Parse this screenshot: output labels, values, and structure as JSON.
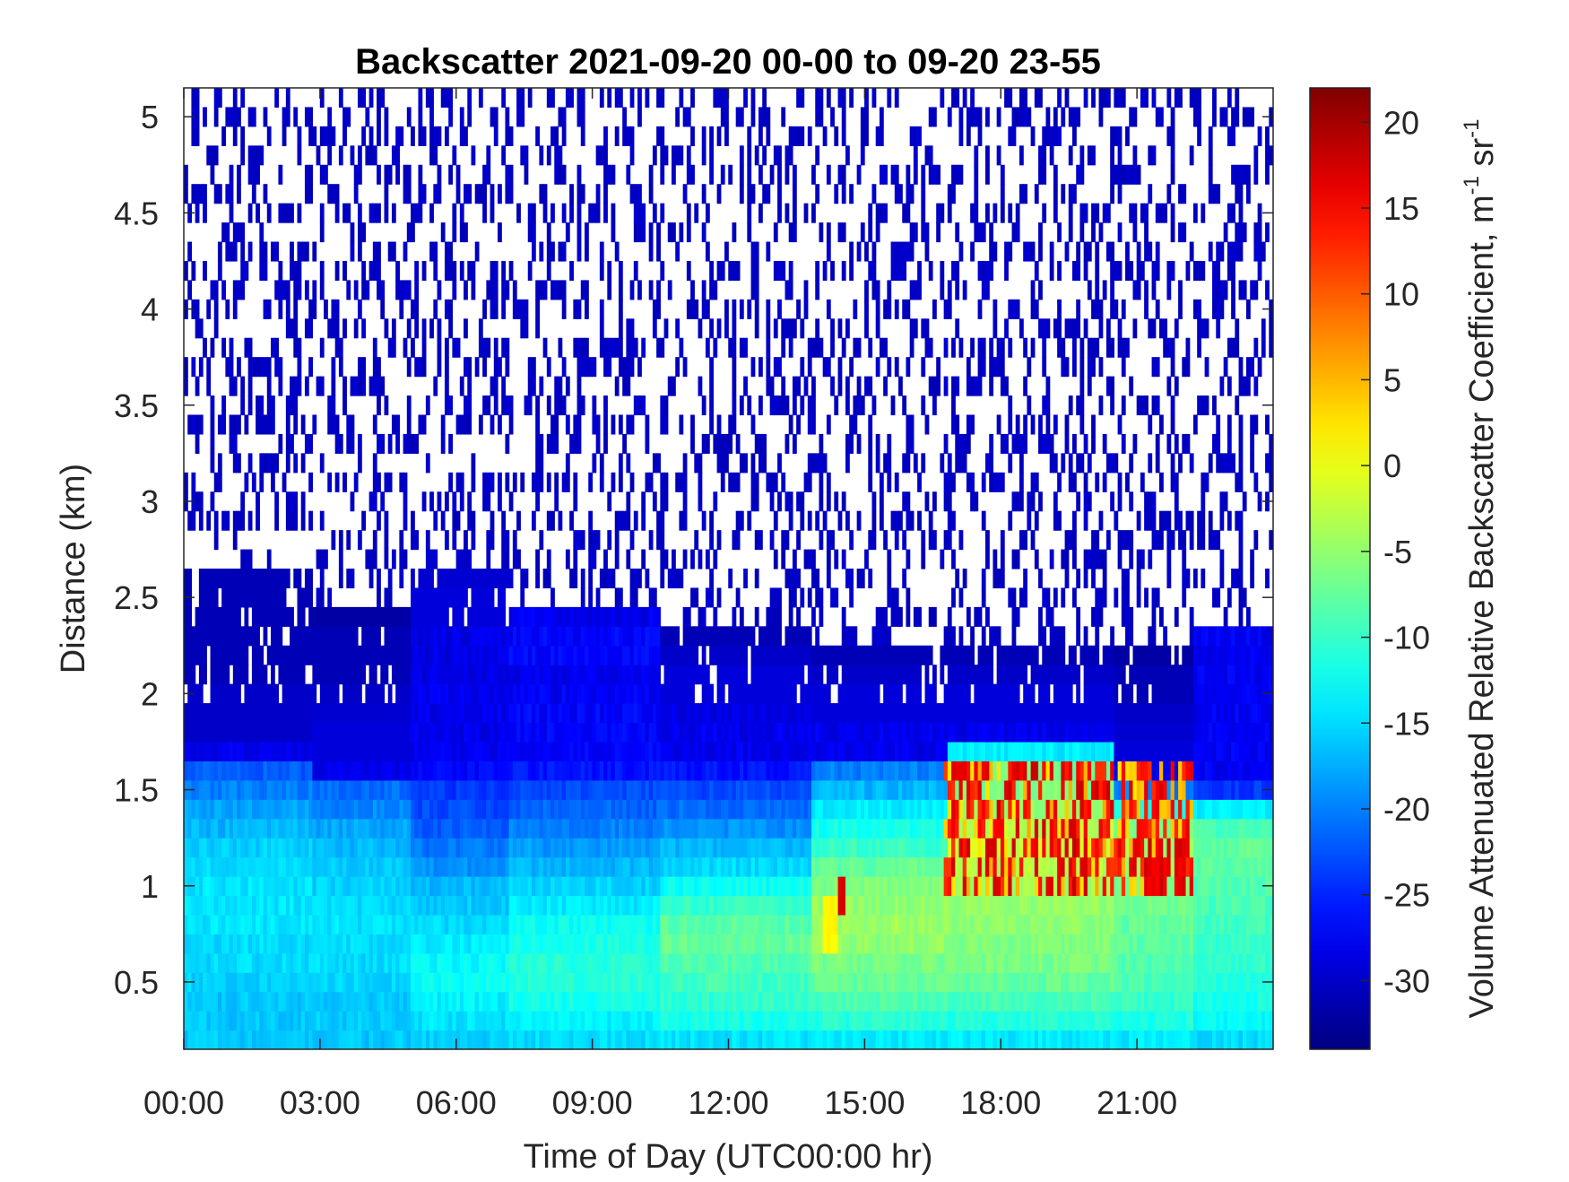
{
  "chart_data": {
    "type": "heatmap",
    "title": "Backscatter 2021-09-20 00-00 to 09-20 23-55",
    "xlabel": "Time of Day (UTC00:00 hr)",
    "ylabel": "Distance (km)",
    "xlim": [
      0,
      24
    ],
    "ylim": [
      0.15,
      5.15
    ],
    "x_ticks": [
      0,
      3,
      6,
      9,
      12,
      15,
      18,
      21
    ],
    "x_tick_labels": [
      "00:00",
      "03:00",
      "06:00",
      "09:00",
      "12:00",
      "15:00",
      "18:00",
      "21:00"
    ],
    "y_ticks": [
      0.5,
      1,
      1.5,
      2,
      2.5,
      3,
      3.5,
      4,
      4.5,
      5
    ],
    "y_tick_labels": [
      "0.5",
      "1",
      "1.5",
      "2",
      "2.5",
      "3",
      "3.5",
      "4",
      "4.5",
      "5"
    ],
    "colorbar": {
      "label_main": "Volume Attenuated Relative Backscatter Coefficient, m",
      "label_sup1": "-1",
      "label_mid": " sr",
      "label_sup2": "-1",
      "clim": [
        -34,
        22
      ],
      "ticks": [
        -30,
        -25,
        -20,
        -15,
        -10,
        -5,
        0,
        5,
        10,
        15,
        20
      ],
      "tick_labels": [
        "-30",
        "-25",
        "-20",
        "-15",
        "-10",
        "-5",
        "0",
        "5",
        "10",
        "15",
        "20"
      ],
      "colormap": "jet"
    },
    "grid": false,
    "time_step_hours": 0.0833,
    "height_bins_km": [
      0.15,
      0.25,
      0.35,
      0.45,
      0.55,
      0.65,
      0.75,
      0.85,
      0.95,
      1.05,
      1.15,
      1.25,
      1.35,
      1.45,
      1.55,
      1.65,
      1.75,
      1.85,
      1.95,
      2.05,
      2.15,
      2.25,
      2.35,
      2.45,
      2.55,
      2.65,
      2.75,
      2.85,
      2.95,
      3.05,
      3.15,
      3.25,
      3.35,
      3.45,
      3.55,
      3.65,
      3.75,
      3.85,
      3.95,
      4.05,
      4.15,
      4.25,
      4.35,
      4.45,
      4.55,
      4.65,
      4.75,
      4.85,
      4.95,
      5.05
    ],
    "time_segments": [
      {
        "t0": 0,
        "t1": 2.8,
        "profile": [
          -16,
          -16,
          -16,
          -15.5,
          -15,
          -15,
          -14.5,
          -14.5,
          -14.5,
          -15,
          -15.5,
          -17,
          -18,
          -20,
          -22,
          -28,
          -30,
          -30,
          -30,
          -31,
          -31,
          -31,
          -31,
          -31,
          -31,
          -34,
          -34,
          -34,
          -34,
          -34,
          -34,
          -34,
          -34,
          -34,
          -34,
          -34,
          -34,
          -34,
          -34,
          -34,
          -34,
          -34,
          -34,
          -34,
          -34,
          -34,
          -34,
          -34,
          -34,
          -34
        ]
      },
      {
        "t0": 2.8,
        "t1": 5.0,
        "profile": [
          -16,
          -16,
          -16,
          -15.5,
          -15,
          -15,
          -14.5,
          -15,
          -15.5,
          -16,
          -17,
          -18,
          -19.5,
          -21,
          -28,
          -29,
          -29,
          -29.5,
          -30,
          -31,
          -31,
          -31,
          -32,
          -34,
          -34,
          -34,
          -34,
          -34,
          -34,
          -34,
          -34,
          -34,
          -34,
          -34,
          -34,
          -34,
          -34,
          -34,
          -34,
          -34,
          -34,
          -34,
          -34,
          -34,
          -34,
          -34,
          -34,
          -34,
          -34,
          -34
        ]
      },
      {
        "t0": 5.0,
        "t1": 7.2,
        "profile": [
          -15.5,
          -14.5,
          -13.5,
          -12.5,
          -13,
          -14,
          -15,
          -16,
          -17,
          -19,
          -20.5,
          -22,
          -23,
          -24,
          -27,
          -28,
          -28,
          -28,
          -28,
          -28.5,
          -28.5,
          -28.5,
          -29,
          -29,
          -29.5,
          -34,
          -34,
          -34,
          -34,
          -34,
          -34,
          -34,
          -34,
          -34,
          -34,
          -34,
          -34,
          -34,
          -34,
          -34,
          -34,
          -34,
          -34,
          -34,
          -34,
          -34,
          -34,
          -34,
          -34,
          -34
        ]
      },
      {
        "t0": 7.2,
        "t1": 10.5,
        "profile": [
          -15,
          -13.5,
          -12,
          -11,
          -11,
          -11.5,
          -12.5,
          -14,
          -15.5,
          -17,
          -18.5,
          -20,
          -21.5,
          -23,
          -26,
          -27,
          -27,
          -27,
          -27.5,
          -28,
          -27,
          -27,
          -28,
          -34,
          -34,
          -34,
          -34,
          -34,
          -34,
          -34,
          -34,
          -34,
          -34,
          -34,
          -34,
          -34,
          -34,
          -34,
          -34,
          -34,
          -34,
          -34,
          -34,
          -34,
          -34,
          -34,
          -34,
          -34,
          -34,
          -34
        ]
      },
      {
        "t0": 10.5,
        "t1": 13.8,
        "profile": [
          -14.5,
          -12,
          -10.5,
          -9.5,
          -8.5,
          -7.5,
          -8,
          -10,
          -12.5,
          -15,
          -17,
          -19,
          -21,
          -23,
          -26,
          -28,
          -28,
          -28.5,
          -29,
          -29,
          -30,
          -31,
          -34,
          -34,
          -34,
          -34,
          -34,
          -34,
          -34,
          -34,
          -34,
          -34,
          -34,
          -34,
          -34,
          -34,
          -34,
          -34,
          -34,
          -34,
          -34,
          -34,
          -34,
          -34,
          -34,
          -34,
          -34,
          -34,
          -34,
          -34
        ]
      },
      {
        "t0": 13.8,
        "t1": 16.8,
        "profile": [
          -14,
          -11,
          -9,
          -7.5,
          -6.5,
          -5,
          -4.5,
          -5,
          -6,
          -7.5,
          -10,
          -12,
          -14,
          -17,
          -20,
          -28,
          -28,
          -29,
          -29,
          -30,
          -31,
          -34,
          -34,
          -34,
          -34,
          -34,
          -34,
          -34,
          -34,
          -34,
          -34,
          -34,
          -34,
          -34,
          -34,
          -34,
          -34,
          -34,
          -34,
          -34,
          -34,
          -34,
          -34,
          -34,
          -34,
          -34,
          -34,
          -34,
          -34,
          -34
        ]
      },
      {
        "t0": 16.8,
        "t1": 20.5,
        "profile": [
          -14,
          -11,
          -9,
          -7.5,
          -6.5,
          -6,
          -5.5,
          -5,
          -4,
          -3,
          -2,
          -3,
          -5,
          -6,
          -7,
          -14,
          -28,
          -29,
          -29,
          -30,
          -31,
          -34,
          -34,
          -34,
          -34,
          -34,
          -34,
          -34,
          -34,
          -34,
          -34,
          -34,
          -34,
          -34,
          -34,
          -34,
          -34,
          -34,
          -34,
          -34,
          -34,
          -34,
          -34,
          -34,
          -34,
          -34,
          -34,
          -34,
          -34,
          -34
        ]
      },
      {
        "t0": 20.5,
        "t1": 22.2,
        "profile": [
          -14,
          -11.5,
          -10,
          -9,
          -8.5,
          -8,
          -7.5,
          -7,
          -6,
          -5,
          -4,
          -6,
          -12,
          -20,
          -28,
          -29,
          -29.5,
          -30,
          -31,
          -31,
          -32,
          -34,
          -34,
          -34,
          -34,
          -34,
          -34,
          -34,
          -34,
          -34,
          -34,
          -34,
          -34,
          -34,
          -34,
          -34,
          -34,
          -34,
          -34,
          -34,
          -34,
          -34,
          -34,
          -34,
          -34,
          -34,
          -34,
          -34,
          -34,
          -34
        ]
      },
      {
        "t0": 22.2,
        "t1": 24.0,
        "profile": [
          -15,
          -13,
          -12,
          -11,
          -10.5,
          -10,
          -9.5,
          -9,
          -8.5,
          -8,
          -7.5,
          -9,
          -14,
          -24,
          -27.5,
          -27.5,
          -27.5,
          -27.5,
          -27.5,
          -27.5,
          -27.5,
          -27.5,
          -34,
          -34,
          -34,
          -34,
          -34,
          -34,
          -34,
          -34,
          -34,
          -34,
          -34,
          -34,
          -34,
          -34,
          -34,
          -34,
          -34,
          -34,
          -34,
          -34,
          -34,
          -34,
          -34,
          -34,
          -34,
          -34,
          -34,
          -34
        ]
      }
    ],
    "features": [
      {
        "kind": "red cloud speckle",
        "t0": 16.7,
        "t1": 22.2,
        "z0": 0.95,
        "z1": 1.65,
        "value": 18
      },
      {
        "kind": "yellow plume",
        "t0": 14.0,
        "t1": 14.4,
        "z0": 0.65,
        "z1": 0.95,
        "value": 1
      },
      {
        "kind": "red streak",
        "t0": 14.4,
        "t1": 14.55,
        "z0": 0.85,
        "z1": 1.05,
        "value": 17
      },
      {
        "kind": "red cloud block",
        "t0": 21.2,
        "t1": 22.0,
        "z0": 0.95,
        "z1": 1.25,
        "value": 18
      },
      {
        "kind": "noise speckle above boundary layer",
        "t0": 0,
        "t1": 24,
        "z0": 1.6,
        "z1": 5.15,
        "value": -31
      }
    ]
  }
}
